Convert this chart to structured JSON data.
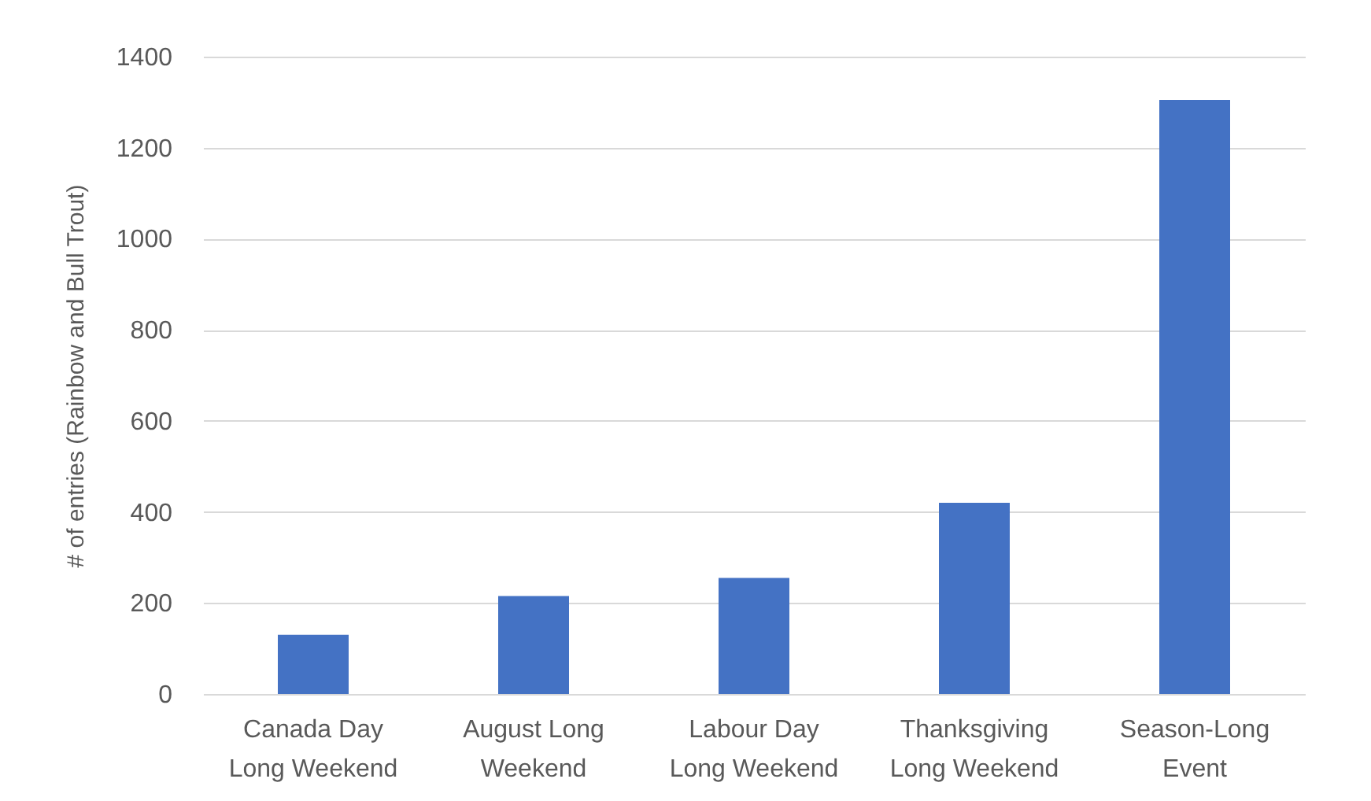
{
  "chart_data": {
    "type": "bar",
    "ylabel": "# of entries (Rainbow and Bull Trout)",
    "categories": [
      "Canada Day Long Weekend",
      "August Long Weekend",
      "Labour Day Long Weekend",
      "Thanksgiving Long Weekend",
      "Season-Long Event"
    ],
    "values": [
      130,
      215,
      255,
      420,
      1305
    ],
    "color": "#4472c4",
    "ylim": [
      0,
      1400
    ],
    "yticks": [
      0,
      200,
      400,
      600,
      800,
      1000,
      1200,
      1400
    ],
    "grid": "y"
  }
}
